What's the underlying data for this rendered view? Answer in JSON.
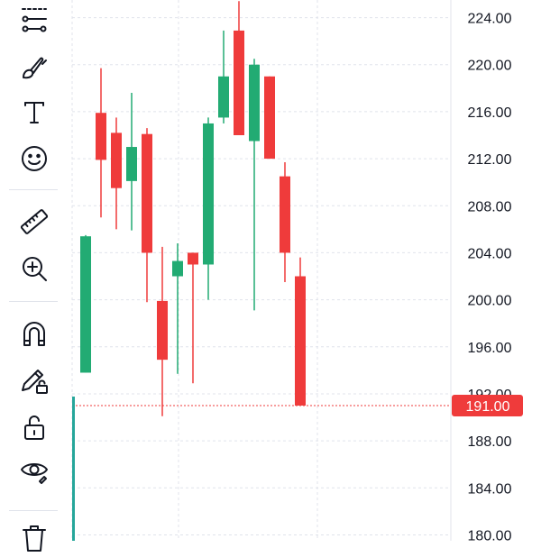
{
  "toolbar": {
    "tools": [
      {
        "icon": "trend-line-icon"
      },
      {
        "icon": "brush-icon"
      },
      {
        "icon": "text-icon"
      },
      {
        "icon": "emoji-icon"
      },
      {
        "icon": "ruler-icon"
      },
      {
        "icon": "zoom-in-icon"
      },
      {
        "icon": "magnet-icon"
      },
      {
        "icon": "lock-drawing-icon"
      },
      {
        "icon": "lock-icon"
      },
      {
        "icon": "eye-icon"
      },
      {
        "icon": "trash-icon"
      }
    ]
  },
  "chart_data": {
    "type": "candlestick",
    "y_ticks": [
      "224.00",
      "220.00",
      "216.00",
      "212.00",
      "208.00",
      "204.00",
      "200.00",
      "196.00",
      "192.00",
      "188.00",
      "184.00",
      "180.00"
    ],
    "y_tick_values": [
      224,
      220,
      216,
      212,
      208,
      204,
      200,
      196,
      192,
      188,
      184,
      180
    ],
    "ylim": [
      179.5,
      225.5
    ],
    "last_price": 191.0,
    "last_price_label": "191.00",
    "grid": true,
    "colors": {
      "up": "#22ab73",
      "down": "#ef3b3b",
      "last_price": "#ef3b3b",
      "grid": "#e0e3eb"
    },
    "candles": [
      {
        "open": 193.8,
        "high": 205.5,
        "low": 193.8,
        "close": 205.4
      },
      {
        "open": 215.9,
        "high": 219.7,
        "low": 207.0,
        "close": 211.9
      },
      {
        "open": 214.2,
        "high": 215.5,
        "low": 206.0,
        "close": 209.5
      },
      {
        "open": 210.1,
        "high": 217.6,
        "low": 205.9,
        "close": 213.0
      },
      {
        "open": 214.1,
        "high": 214.6,
        "low": 199.8,
        "close": 204.0
      },
      {
        "open": 199.9,
        "high": 204.5,
        "low": 190.1,
        "close": 194.9
      },
      {
        "open": 202.0,
        "high": 204.8,
        "low": 193.7,
        "close": 203.3
      },
      {
        "open": 204.0,
        "high": 204.0,
        "low": 192.9,
        "close": 203.0
      },
      {
        "open": 203.0,
        "high": 215.5,
        "low": 200.0,
        "close": 215.0
      },
      {
        "open": 215.5,
        "high": 222.9,
        "low": 215.0,
        "close": 219.0
      },
      {
        "open": 222.9,
        "high": 225.4,
        "low": 214.0,
        "close": 214.0
      },
      {
        "open": 213.5,
        "high": 220.5,
        "low": 199.1,
        "close": 220.0
      },
      {
        "open": 219.0,
        "high": 219.0,
        "low": 212.0,
        "close": 212.0
      },
      {
        "open": 210.5,
        "high": 211.7,
        "low": 201.5,
        "close": 204.0
      },
      {
        "open": 202.0,
        "high": 203.6,
        "low": 191.0,
        "close": 191.0
      }
    ]
  }
}
